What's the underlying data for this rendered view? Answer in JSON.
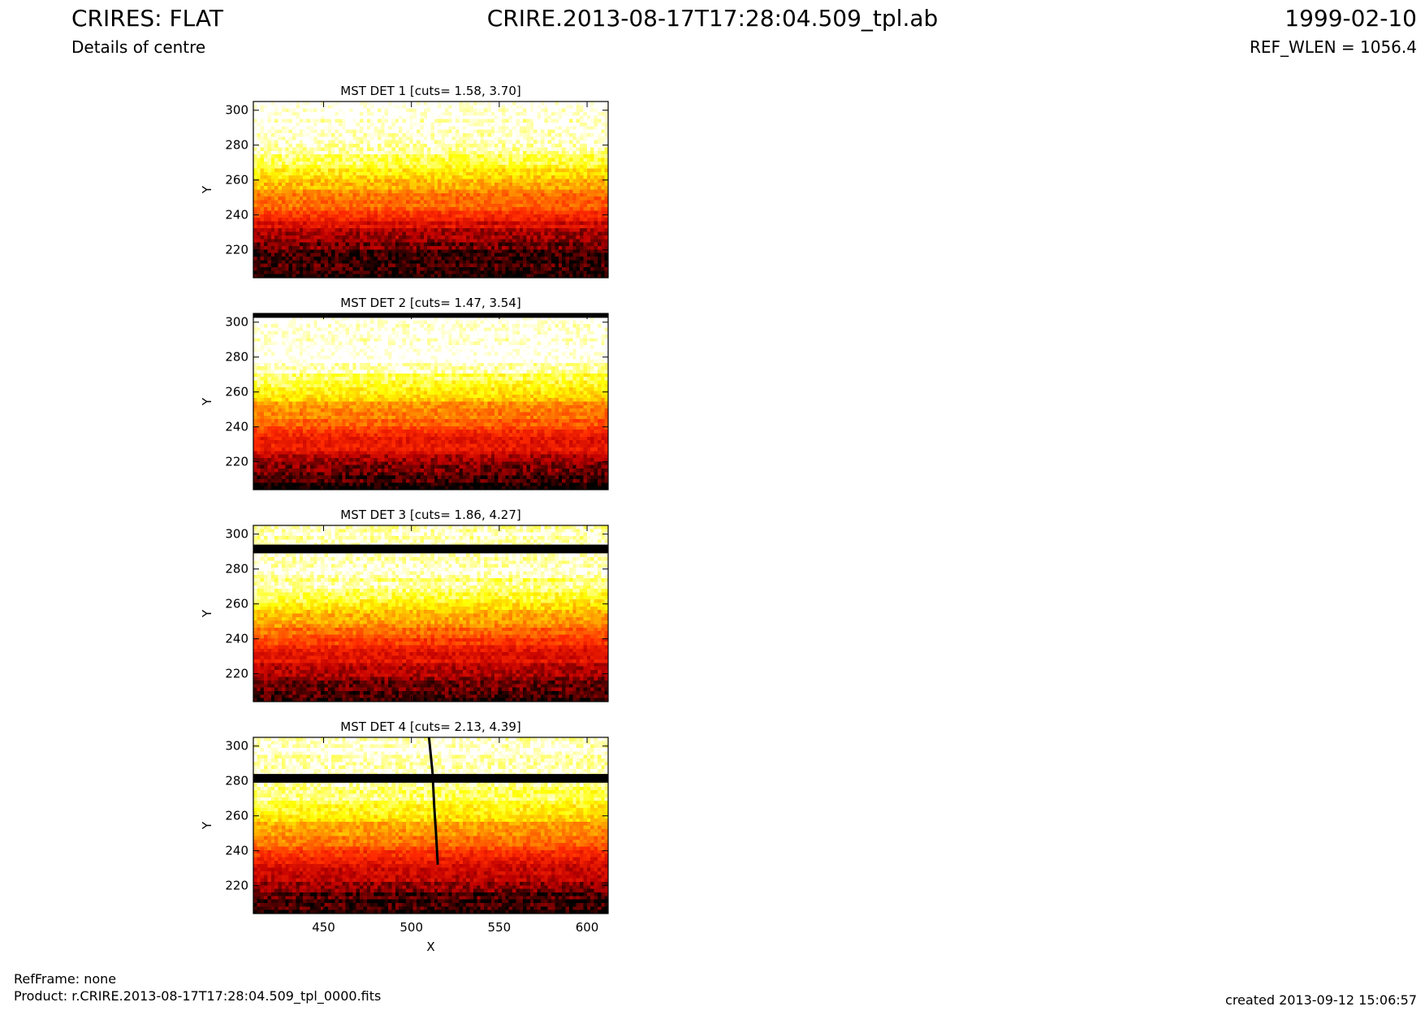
{
  "header": {
    "title": "CRIRES: FLAT",
    "subtitle": "Details of centre",
    "file_id": "CRIRE.2013-08-17T17:28:04.509_tpl.ab",
    "date": "1999-02-10",
    "ref_wlen": "REF_WLEN = 1056.4"
  },
  "footer": {
    "refframe": "RefFrame: none",
    "product": "Product: r.CRIRE.2013-08-17T17:28:04.509_tpl_0000.fits",
    "created": "created 2013-09-12 15:06:57"
  },
  "colors": {
    "colormap": [
      "#000000",
      "#c00000",
      "#ff2a00",
      "#ff8c00",
      "#ffff00",
      "#ffffff"
    ],
    "masked_band": "#000000"
  },
  "chart_data": [
    {
      "type": "heatmap",
      "title": "MST DET 1 [cuts= 1.58, 3.70]",
      "colormap": "hot",
      "xlim": [
        410,
        612
      ],
      "ylim": [
        204,
        305
      ],
      "x_ticks": [
        450,
        500,
        550,
        600
      ],
      "y_ticks": [
        220,
        240,
        260,
        280,
        300
      ],
      "xlabel": "",
      "ylabel": "Y",
      "profile": [
        [
          204,
          0.0
        ],
        [
          212,
          0.06
        ],
        [
          225,
          0.14
        ],
        [
          235,
          0.3
        ],
        [
          245,
          0.52
        ],
        [
          255,
          0.64
        ],
        [
          262,
          0.74
        ],
        [
          268,
          0.84
        ],
        [
          274,
          0.93
        ],
        [
          282,
          0.98
        ],
        [
          305,
          1.0
        ]
      ],
      "masked_rows": [],
      "vertical_track": null
    },
    {
      "type": "heatmap",
      "title": "MST DET 2 [cuts= 1.47, 3.54]",
      "colormap": "hot",
      "xlim": [
        410,
        612
      ],
      "ylim": [
        204,
        305
      ],
      "x_ticks": [
        450,
        500,
        550,
        600
      ],
      "y_ticks": [
        220,
        240,
        260,
        280,
        300
      ],
      "xlabel": "",
      "ylabel": "Y",
      "profile": [
        [
          204,
          0.02
        ],
        [
          214,
          0.12
        ],
        [
          226,
          0.28
        ],
        [
          236,
          0.42
        ],
        [
          244,
          0.55
        ],
        [
          252,
          0.65
        ],
        [
          260,
          0.76
        ],
        [
          266,
          0.86
        ],
        [
          271,
          0.94
        ],
        [
          276,
          1.0
        ],
        [
          305,
          1.0
        ]
      ],
      "masked_rows": [
        [
          302.5,
          305
        ]
      ],
      "vertical_track": null
    },
    {
      "type": "heatmap",
      "title": "MST DET 3 [cuts= 1.86, 4.27]",
      "colormap": "hot",
      "xlim": [
        410,
        612
      ],
      "ylim": [
        204,
        305
      ],
      "x_ticks": [
        450,
        500,
        550,
        600
      ],
      "y_ticks": [
        220,
        240,
        260,
        280,
        300
      ],
      "xlabel": "",
      "ylabel": "Y",
      "profile": [
        [
          204,
          0.02
        ],
        [
          214,
          0.1
        ],
        [
          226,
          0.26
        ],
        [
          236,
          0.42
        ],
        [
          246,
          0.58
        ],
        [
          254,
          0.7
        ],
        [
          262,
          0.82
        ],
        [
          270,
          0.92
        ],
        [
          280,
          0.98
        ],
        [
          305,
          0.98
        ]
      ],
      "masked_rows": [
        [
          289,
          294
        ]
      ],
      "vertical_track": null
    },
    {
      "type": "heatmap",
      "title": "MST DET 4 [cuts= 2.13, 4.39]",
      "colormap": "hot",
      "xlim": [
        410,
        612
      ],
      "ylim": [
        204,
        305
      ],
      "x_ticks": [
        450,
        500,
        550,
        600
      ],
      "y_ticks": [
        220,
        240,
        260,
        280,
        300
      ],
      "xlabel": "X",
      "ylabel": "Y",
      "profile": [
        [
          204,
          0.02
        ],
        [
          214,
          0.1
        ],
        [
          226,
          0.24
        ],
        [
          236,
          0.4
        ],
        [
          246,
          0.56
        ],
        [
          256,
          0.7
        ],
        [
          264,
          0.82
        ],
        [
          272,
          0.92
        ],
        [
          280,
          0.97
        ],
        [
          305,
          0.97
        ]
      ],
      "masked_rows": [
        [
          279,
          284
        ]
      ],
      "vertical_track": [
        [
          510,
          305
        ],
        [
          512,
          285
        ],
        [
          513,
          265
        ],
        [
          514,
          250
        ],
        [
          515,
          232
        ]
      ]
    }
  ]
}
